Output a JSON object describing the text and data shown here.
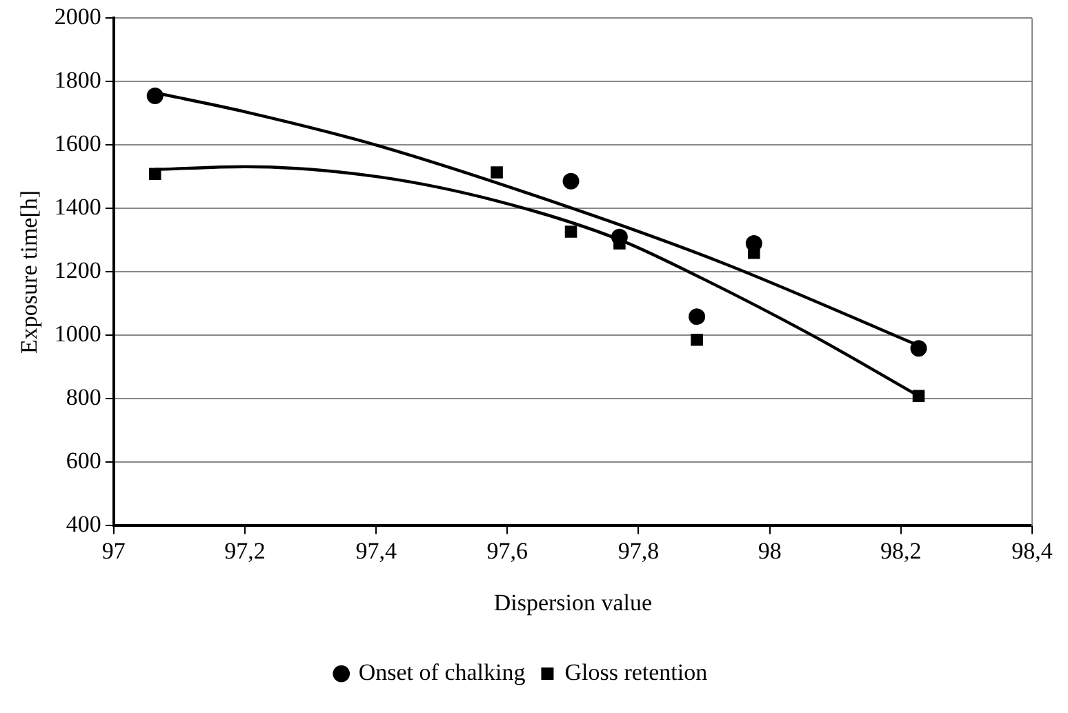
{
  "chart_data": {
    "type": "scatter",
    "xlabel": "Dispersion value",
    "ylabel": "Exposure time[h]",
    "xlim": [
      97,
      98.4
    ],
    "xticks": [
      97,
      {
        "value": 97.2,
        "label": "97,2"
      },
      {
        "value": 97.4,
        "label": "97,4"
      },
      {
        "value": 97.6,
        "label": "97,6"
      },
      {
        "value": 97.8,
        "label": "97,8"
      },
      98,
      {
        "value": 98.2,
        "label": "98,2"
      },
      {
        "value": 98.4,
        "label": "98,4"
      }
    ],
    "ylim": [
      400,
      2000
    ],
    "yticks": [
      400,
      600,
      800,
      1000,
      1200,
      1400,
      1600,
      1800,
      2000
    ],
    "grid": "y",
    "legend": "bottom",
    "series": [
      {
        "name": "Onset of chalking",
        "type": "scatter",
        "marker": "circle",
        "color": "#000000",
        "x": [
          97.063,
          97.697,
          97.771,
          97.889,
          97.976,
          98.227
        ],
        "values": [
          1755,
          1486,
          1310,
          1059,
          1290,
          959
        ]
      },
      {
        "name": "Gloss retention",
        "type": "scatter",
        "marker": "square",
        "color": "#000000",
        "x": [
          97.063,
          97.584,
          97.697,
          97.771,
          97.889,
          97.976,
          98.227
        ],
        "values": [
          1509,
          1514,
          1327,
          1290,
          986,
          1260,
          809
        ]
      },
      {
        "type": "line",
        "marker": "none",
        "color": "#000000",
        "x": [
          97.063,
          97.2,
          97.4,
          97.7,
          97.93,
          98.227
        ],
        "values": [
          1765,
          1705,
          1600,
          1400,
          1227,
          968
        ]
      },
      {
        "type": "line",
        "marker": "none",
        "color": "#000000",
        "x": [
          97.063,
          97.2,
          97.403,
          97.586,
          97.767,
          97.882,
          98.065,
          98.227
        ],
        "values": [
          1523,
          1532,
          1500,
          1423,
          1305,
          1195,
          1000,
          809
        ]
      }
    ]
  }
}
